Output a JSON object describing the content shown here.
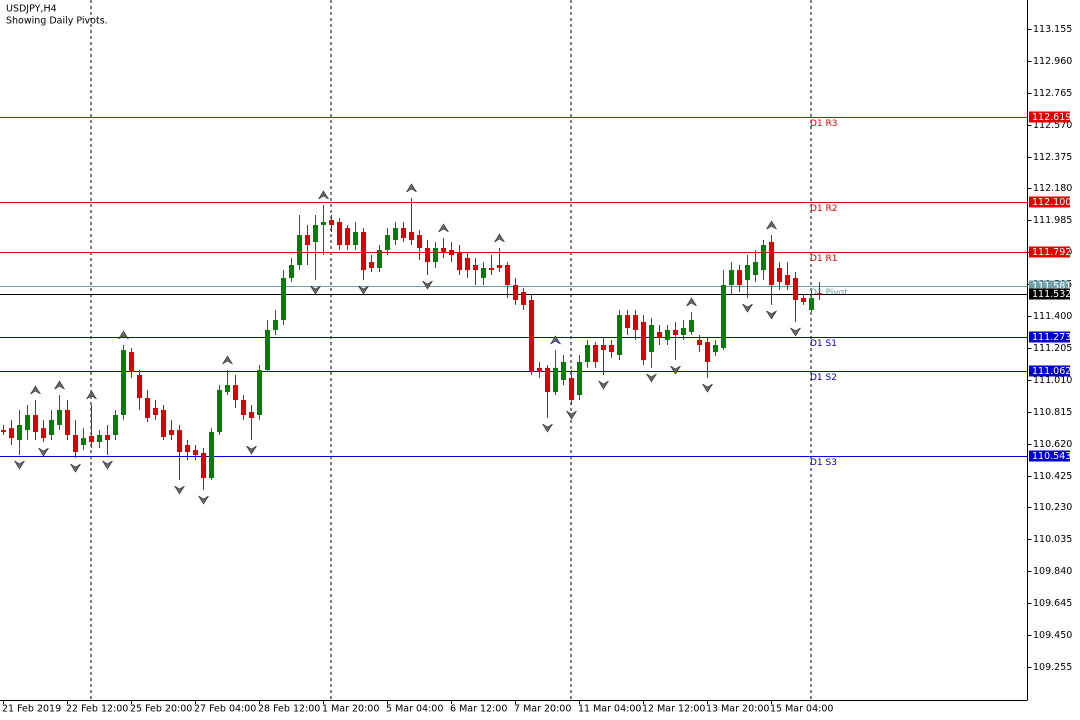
{
  "chart_data": {
    "type": "candlestick",
    "title": "USDJPY,H4",
    "subtitle": "Showing Daily Pivots.",
    "categories": [
      "21 Feb 2019",
      null,
      null,
      null,
      null,
      null,
      null,
      null,
      "22 Feb 12:00",
      null,
      null,
      null,
      null,
      null,
      null,
      null,
      "25 Feb 20:00",
      null,
      null,
      null,
      null,
      null,
      null,
      null,
      "27 Feb 04:00",
      null,
      null,
      null,
      null,
      null,
      null,
      null,
      "28 Feb 12:00",
      null,
      null,
      null,
      null,
      null,
      null,
      null,
      "1 Mar 20:00",
      null,
      null,
      null,
      null,
      null,
      null,
      null,
      "5 Mar 04:00",
      null,
      null,
      null,
      null,
      null,
      null,
      null,
      "6 Mar 12:00",
      null,
      null,
      null,
      null,
      null,
      null,
      null,
      "7 Mar 20:00",
      null,
      null,
      null,
      null,
      null,
      null,
      null,
      "11 Mar 04:00",
      null,
      null,
      null,
      null,
      null,
      null,
      null,
      "12 Mar 12:00",
      null,
      null,
      null,
      null,
      null,
      null,
      null,
      "13 Mar 20:00",
      null,
      null,
      null,
      null,
      null,
      null,
      null,
      "15 Mar 04:00",
      null,
      null,
      null,
      null,
      null,
      null
    ],
    "open": [
      110.703,
      110.715,
      110.642,
      110.703,
      110.795,
      110.715,
      110.673,
      110.734,
      110.826,
      110.673,
      110.612,
      110.667,
      110.63,
      110.673,
      110.673,
      110.795,
      111.18,
      111.04,
      110.899,
      110.838,
      110.826,
      110.703,
      110.703,
      110.612,
      110.581,
      110.563,
      110.41,
      110.691,
      110.936,
      110.978,
      110.887,
      110.813,
      110.795,
      111.07,
      111.315,
      111.376,
      111.633,
      111.712,
      111.895,
      111.853,
      111.957,
      111.987,
      111.975,
      111.938,
      111.834,
      111.914,
      111.73,
      111.694,
      111.804,
      111.865,
      111.938,
      111.914,
      111.895,
      111.816,
      111.73,
      111.816,
      111.804,
      111.792,
      111.755,
      111.712,
      111.633,
      111.694,
      111.712,
      111.712,
      111.59,
      111.547,
      111.498,
      111.083,
      111.083,
      110.936,
      111.009,
      111.021,
      110.917,
      111.119,
      111.223,
      111.223,
      111.223,
      111.162,
      111.406,
      111.406,
      111.364,
      111.18,
      111.303,
      111.254,
      111.315,
      111.284,
      111.303,
      111.254,
      111.241,
      111.18,
      111.205,
      111.59,
      111.681,
      111.62,
      111.651,
      111.681,
      111.853,
      111.694,
      111.651,
      111.633,
      111.51,
      111.437,
      111.54
    ],
    "high": [
      110.734,
      110.765,
      110.826,
      110.856,
      110.887,
      110.765,
      110.826,
      110.917,
      110.887,
      110.765,
      110.715,
      110.856,
      110.703,
      110.734,
      110.826,
      111.223,
      111.205,
      111.07,
      110.948,
      110.887,
      110.856,
      110.765,
      110.734,
      110.642,
      110.612,
      110.593,
      110.715,
      110.978,
      111.07,
      111.04,
      110.917,
      110.856,
      111.101,
      111.376,
      111.437,
      111.681,
      111.755,
      112.018,
      111.957,
      112.018,
      112.079,
      112.018,
      111.999,
      111.957,
      111.975,
      111.938,
      111.773,
      111.834,
      111.938,
      111.975,
      111.975,
      112.122,
      111.926,
      111.865,
      111.853,
      111.877,
      111.853,
      111.834,
      111.792,
      111.755,
      111.73,
      111.773,
      111.816,
      111.73,
      111.633,
      111.571,
      111.529,
      111.119,
      111.101,
      111.192,
      111.162,
      111.07,
      111.162,
      111.254,
      111.241,
      111.266,
      111.254,
      111.437,
      111.437,
      111.437,
      111.406,
      111.388,
      111.345,
      111.345,
      111.364,
      111.376,
      111.425,
      111.284,
      111.266,
      111.254,
      111.681,
      111.73,
      111.712,
      111.773,
      111.804,
      111.865,
      111.895,
      111.73,
      111.73,
      111.669,
      111.529,
      111.559,
      111.608
    ],
    "low": [
      110.673,
      110.612,
      110.551,
      110.642,
      110.642,
      110.63,
      110.642,
      110.703,
      110.642,
      110.532,
      110.581,
      110.593,
      110.593,
      110.551,
      110.642,
      110.765,
      111.021,
      110.826,
      110.752,
      110.765,
      110.642,
      110.642,
      110.398,
      110.52,
      110.52,
      110.337,
      110.398,
      110.673,
      110.917,
      110.838,
      110.765,
      110.642,
      110.765,
      111.058,
      111.284,
      111.345,
      111.608,
      111.681,
      111.712,
      111.62,
      111.773,
      111.914,
      111.804,
      111.804,
      111.804,
      111.62,
      111.669,
      111.669,
      111.773,
      111.834,
      111.853,
      111.834,
      111.743,
      111.651,
      111.694,
      111.755,
      111.73,
      111.651,
      111.633,
      111.59,
      111.59,
      111.651,
      111.669,
      111.51,
      111.468,
      111.437,
      111.04,
      111.021,
      110.777,
      110.917,
      110.978,
      110.856,
      110.887,
      111.083,
      111.083,
      111.04,
      111.144,
      111.131,
      111.284,
      111.254,
      111.101,
      111.083,
      111.223,
      111.223,
      111.131,
      111.254,
      111.284,
      111.18,
      111.021,
      111.156,
      111.192,
      111.529,
      111.547,
      111.51,
      111.608,
      111.62,
      111.468,
      111.559,
      111.559,
      111.364,
      111.468,
      111.425,
      111.498
    ],
    "close": [
      110.691,
      110.654,
      110.734,
      110.795,
      110.691,
      110.654,
      110.765,
      110.826,
      110.673,
      110.569,
      110.654,
      110.63,
      110.673,
      110.642,
      110.795,
      111.192,
      111.058,
      110.899,
      110.777,
      110.795,
      110.661,
      110.673,
      110.569,
      110.569,
      110.551,
      110.41,
      110.691,
      110.948,
      110.978,
      110.887,
      110.795,
      110.777,
      111.07,
      111.315,
      111.376,
      111.633,
      111.712,
      111.895,
      111.834,
      111.957,
      111.975,
      111.957,
      111.834,
      111.834,
      111.914,
      111.681,
      111.694,
      111.804,
      111.895,
      111.938,
      111.877,
      111.865,
      111.816,
      111.73,
      111.816,
      111.792,
      111.773,
      111.681,
      111.681,
      111.681,
      111.694,
      111.681,
      111.694,
      111.59,
      111.498,
      111.468,
      111.058,
      111.058,
      110.936,
      111.083,
      111.119,
      110.887,
      111.119,
      111.223,
      111.119,
      111.192,
      111.18,
      111.406,
      111.327,
      111.315,
      111.131,
      111.345,
      111.266,
      111.315,
      111.284,
      111.327,
      111.376,
      111.223,
      111.119,
      111.223,
      111.59,
      111.681,
      111.59,
      111.712,
      111.73,
      111.834,
      111.59,
      111.608,
      111.59,
      111.498,
      111.486,
      111.51,
      111.532
    ],
    "up_color": "#008000",
    "down_color": "#e00000",
    "ylim": [
      109.053,
      113.332
    ],
    "yticks": [
      113.155,
      {
        "value": 112.96,
        "label": "112.960"
      },
      112.765,
      {
        "value": 112.57,
        "label": "112.570"
      },
      112.375,
      {
        "value": 112.18,
        "label": "112.180"
      },
      111.985,
      {
        "value": 111.79,
        "label": "111.790"
      },
      111.595,
      {
        "value": 111.4,
        "label": "111.400"
      },
      111.205,
      {
        "value": 111.01,
        "label": "111.010"
      },
      110.815,
      {
        "value": 110.62,
        "label": "110.620"
      },
      110.425,
      {
        "value": 110.23,
        "label": "110.230"
      },
      110.035,
      {
        "value": 109.84,
        "label": "109.840"
      },
      109.645,
      {
        "value": 109.45,
        "label": "109.450"
      },
      109.255
    ],
    "pivots": [
      {
        "name": "D1 R3",
        "value": 112.619,
        "label": "112.619",
        "color": "#e00000"
      },
      {
        "name": "D1 R2",
        "value": 112.1,
        "label": "112.100",
        "color": "#e00000"
      },
      {
        "name": "D1 R1",
        "value": 111.792,
        "label": "111.792",
        "color": "#e00000"
      },
      {
        "name": "D1 Pivot",
        "value": 111.581,
        "label": "111.581",
        "color": "#6fa0aa"
      },
      {
        "name": "D1 S1",
        "value": 111.273,
        "label": "111.273",
        "color": "#0000c8"
      },
      {
        "name": "D1 S2",
        "value": 111.062,
        "label": "111.062",
        "color": "#0000c8"
      },
      {
        "name": "D1 S3",
        "value": 110.543,
        "label": "110.543",
        "color": "#0000c8"
      }
    ],
    "current_price": 111.532
  }
}
